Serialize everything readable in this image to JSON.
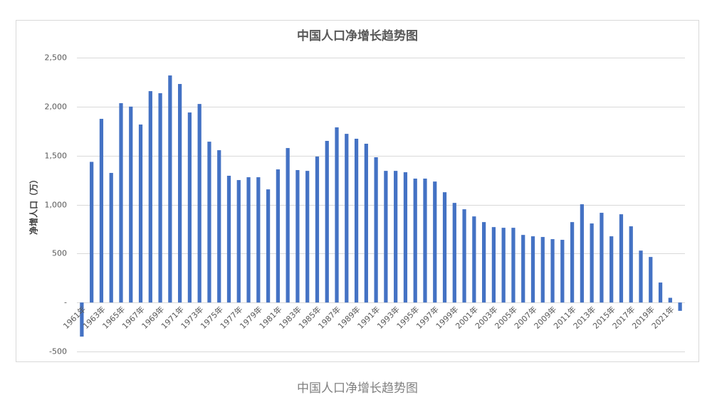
{
  "chart_data": {
    "type": "bar",
    "title": "中国人口净增长趋势图",
    "y_label": "净增人口（万）",
    "categories": [
      "1961年",
      null,
      "1963年",
      null,
      "1965年",
      null,
      "1967年",
      null,
      "1969年",
      null,
      "1971年",
      null,
      "1973年",
      null,
      "1975年",
      null,
      "1977年",
      null,
      "1979年",
      null,
      "1981年",
      null,
      "1983年",
      null,
      "1985年",
      null,
      "1987年",
      null,
      "1989年",
      null,
      "1991年",
      null,
      "1993年",
      null,
      "1995年",
      null,
      "1997年",
      null,
      "1999年",
      null,
      "2001年",
      null,
      "2003年",
      null,
      "2005年",
      null,
      "2007年",
      null,
      "2009年",
      null,
      "2011年",
      null,
      "2013年",
      null,
      "2015年",
      null,
      "2017年",
      null,
      "2019年",
      null,
      "2021年",
      null
    ],
    "values": [
      -348,
      1436,
      1875,
      1323,
      2035,
      2000,
      1817,
      2158,
      2137,
      2318,
      2231,
      1940,
      2027,
      1642,
      1555,
      1294,
      1250,
      1279,
      1279,
      1155,
      1359,
      1577,
      1352,
      1344,
      1490,
      1650,
      1788,
      1722,
      1672,
      1621,
      1483,
      1344,
      1344,
      1330,
      1265,
      1265,
      1235,
      1126,
      1017,
      952,
      879,
      821,
      770,
      763,
      763,
      690,
      676,
      669,
      647,
      640,
      821,
      1003,
      807,
      916,
      676,
      901,
      778,
      530,
      465,
      204,
      48,
      -85
    ],
    "color": "#4472c4",
    "ylim": [
      -500,
      2500
    ],
    "yticks": [
      -500,
      {
        "value": 0,
        "label": "-"
      },
      500,
      {
        "value": 1000,
        "label": "1,000"
      },
      {
        "value": 1500,
        "label": "1,500"
      },
      {
        "value": 2000,
        "label": "2,000"
      },
      {
        "value": 2500,
        "label": "2,500"
      }
    ],
    "grid": true
  },
  "caption": "中国人口净增长趋势图"
}
